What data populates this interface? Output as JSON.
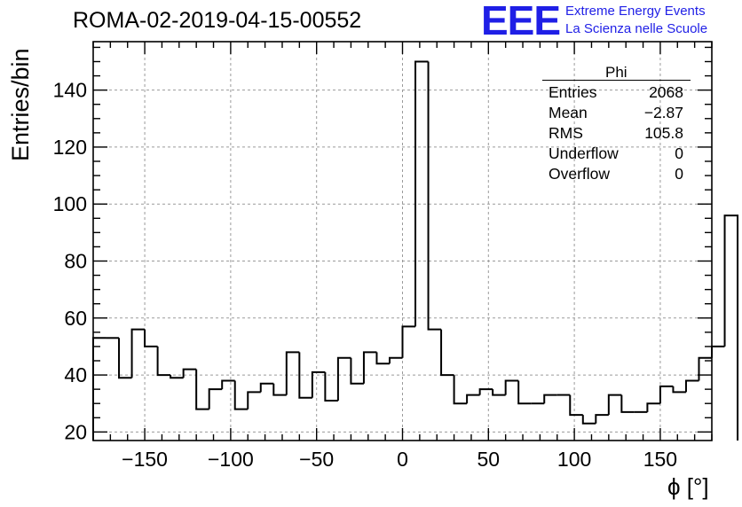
{
  "header": {
    "title": "ROMA-02-2019-04-15-00552",
    "logo_mark": "EEE",
    "logo_line1": "Extreme Energy Events",
    "logo_line2": "La Scienza nelle Scuole"
  },
  "stats_box": {
    "name": "Phi",
    "rows": [
      {
        "key": "Entries",
        "value": "2068"
      },
      {
        "key": "Mean",
        "value": "−2.87"
      },
      {
        "key": "RMS",
        "value": "105.8"
      },
      {
        "key": "Underflow",
        "value": "0"
      },
      {
        "key": "Overflow",
        "value": "0"
      }
    ]
  },
  "colors": {
    "line": "#000000",
    "grid": "#9a9a9a",
    "logo": "#1f1fe6"
  },
  "chart_data": {
    "type": "histogram",
    "title": "ROMA-02-2019-04-15-00552",
    "xlabel": "ϕ [°]",
    "ylabel": "Entries/bin",
    "xlim": [
      -180,
      180
    ],
    "ylim": [
      17,
      157
    ],
    "bin_width": 7.5,
    "bin_edges_start": -180,
    "grid": true,
    "legend": "none",
    "x_ticks": [
      -150,
      -100,
      -50,
      0,
      50,
      100,
      150
    ],
    "x_tick_labels": [
      "−150",
      "−100",
      "−50",
      "0",
      "50",
      "100",
      "150"
    ],
    "y_ticks": [
      20,
      40,
      60,
      80,
      100,
      120,
      140
    ],
    "y_tick_labels": [
      "20",
      "40",
      "60",
      "80",
      "100",
      "120",
      "140"
    ],
    "values": [
      53,
      53,
      39,
      56,
      50,
      40,
      39,
      42,
      28,
      35,
      38,
      28,
      34,
      37,
      33,
      48,
      32,
      41,
      31,
      46,
      37,
      48,
      44,
      46,
      57,
      150,
      56,
      40,
      30,
      33,
      35,
      33,
      38,
      30,
      30,
      33,
      33,
      26,
      23,
      26,
      33,
      27,
      27,
      30,
      36,
      34,
      38,
      46,
      50,
      96
    ]
  }
}
